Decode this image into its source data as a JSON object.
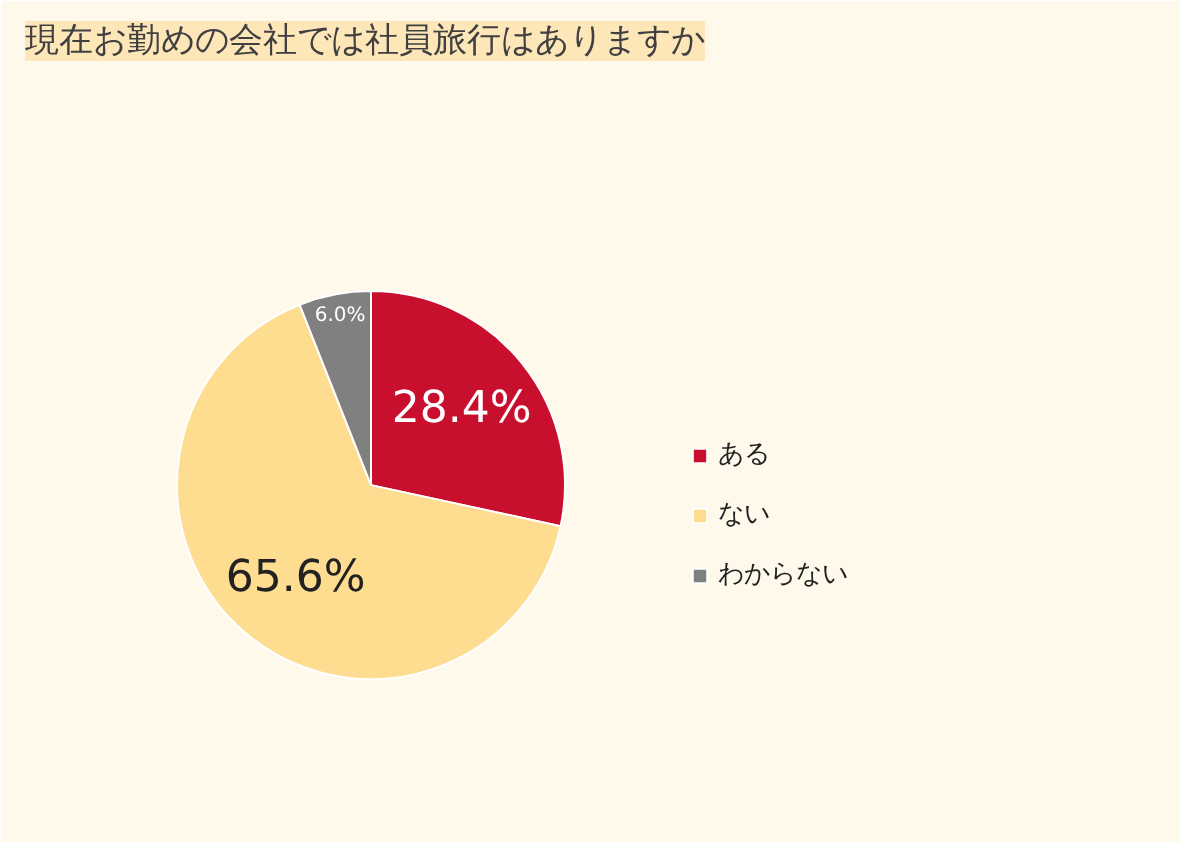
{
  "chart_data": {
    "type": "pie",
    "title": "現在お勤めの会社では社員旅行はありますか",
    "categories": [
      "ある",
      "ない",
      "わからない"
    ],
    "values": [
      28.4,
      65.6,
      6.0
    ],
    "colors": [
      "#c8102e",
      "#fedc90",
      "#808080"
    ],
    "value_labels": [
      "28.4%",
      "65.6%",
      "6.0%"
    ],
    "legend": "right"
  }
}
